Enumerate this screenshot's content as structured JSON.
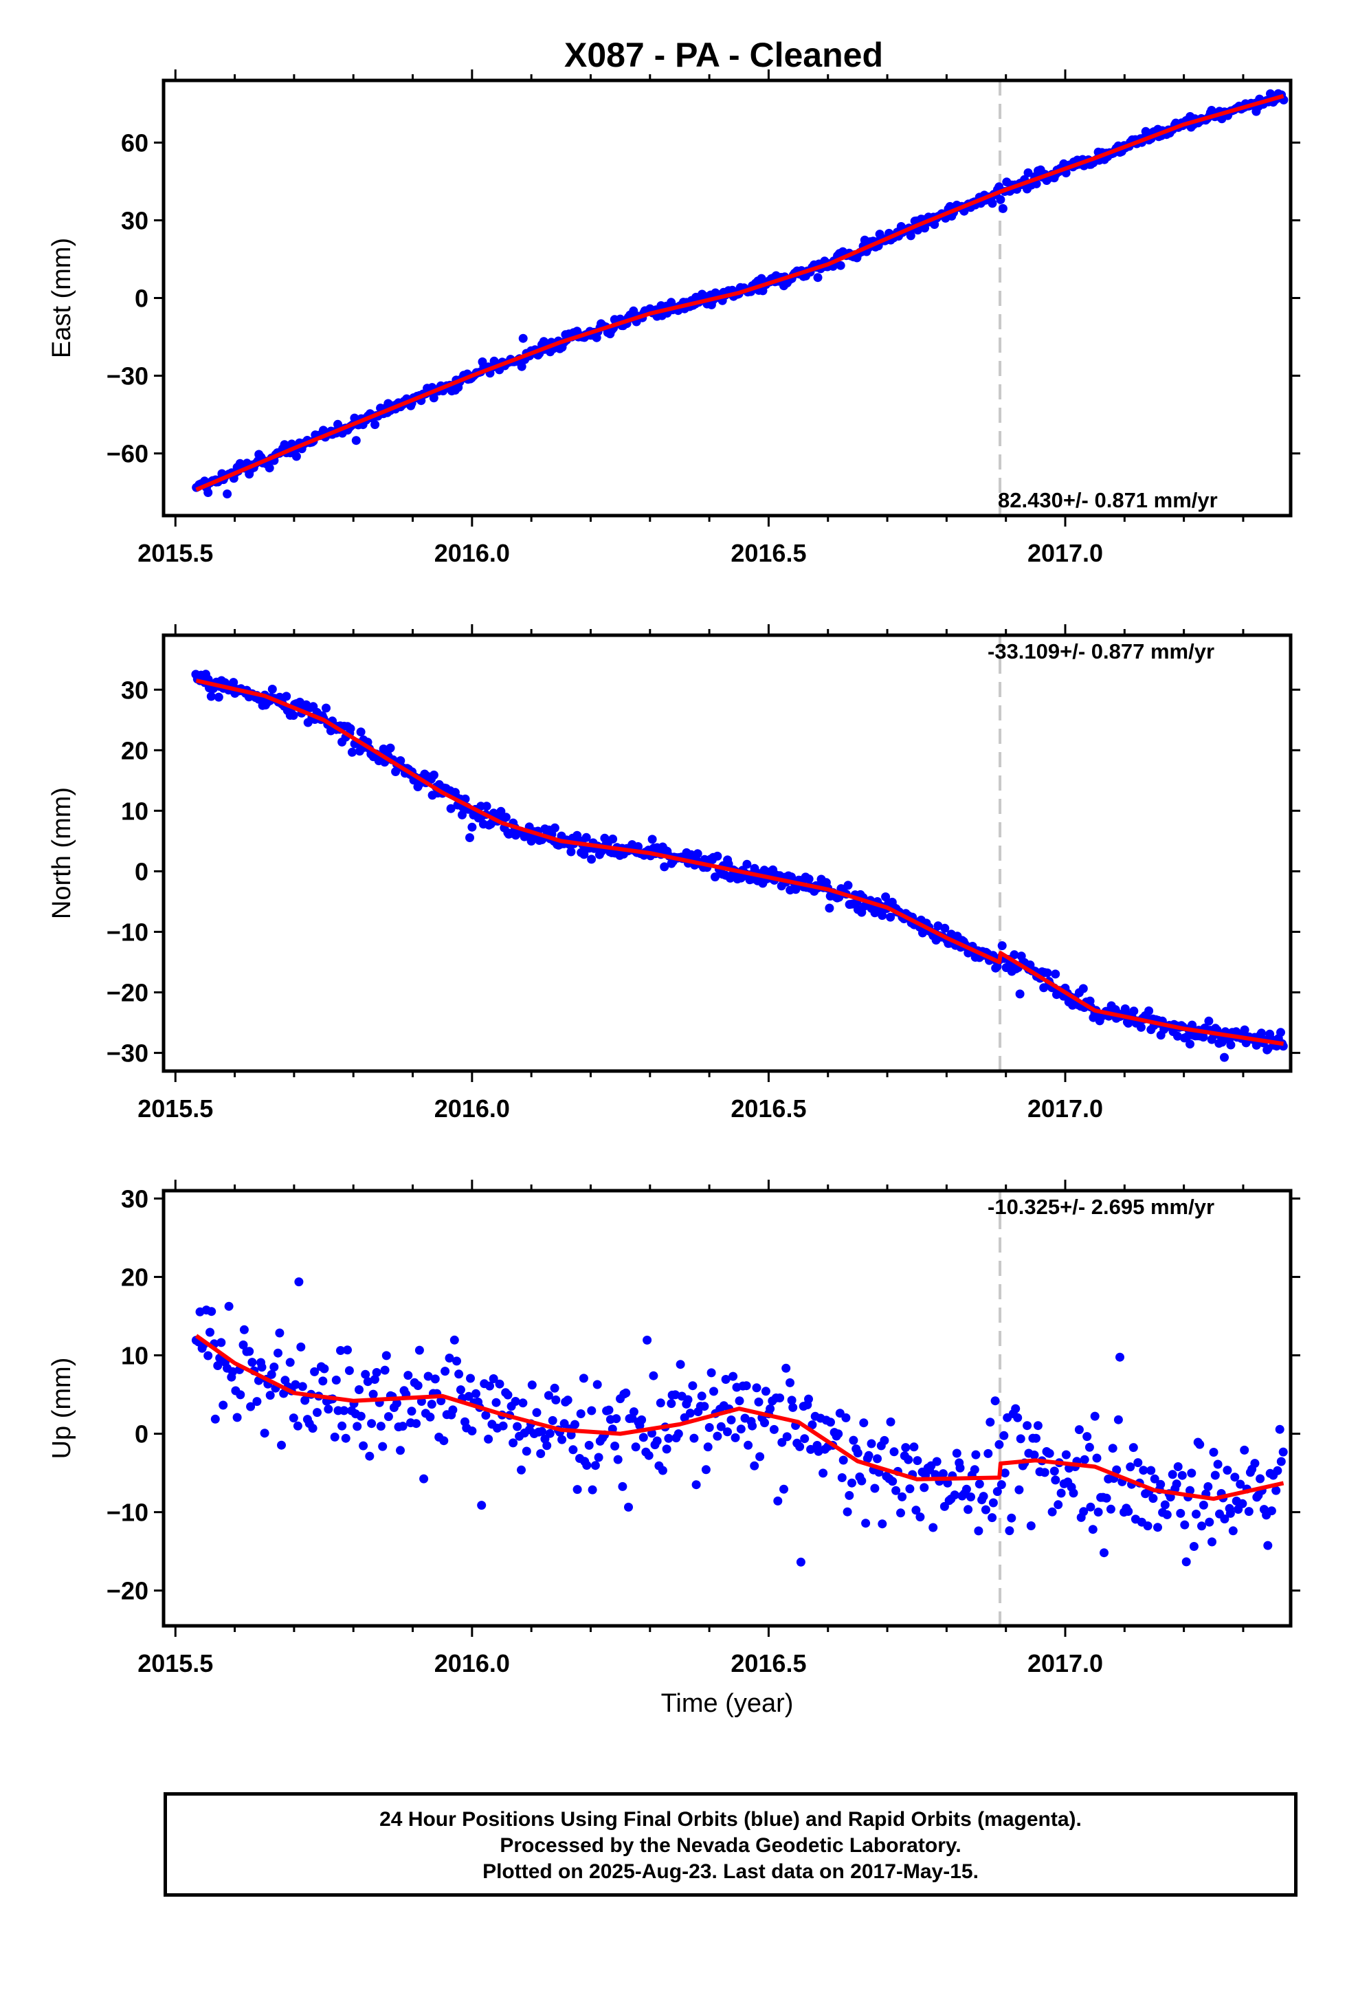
{
  "title": "X087  - PA - Cleaned",
  "xlabel": "Time (year)",
  "footer": {
    "line1": "24 Hour Positions Using Final Orbits (blue) and Rapid Orbits (magenta).",
    "line2": "Processed by the Nevada Geodetic Laboratory.",
    "line3": "Plotted on 2025-Aug-23. Last data on 2017-May-15."
  },
  "colors": {
    "points": "#0000ff",
    "fit": "#ff0000",
    "event_line": "#c8c8c8",
    "frame": "#000000"
  },
  "chart_data": [
    {
      "type": "scatter",
      "ylabel": "East (mm)",
      "rate_text": "82.430+/- 0.871 mm/yr",
      "xlim": [
        2015.48,
        2017.38
      ],
      "ylim": [
        -84,
        84
      ],
      "xticks": [
        "2015.5",
        "2016.0",
        "2016.5",
        "2017.0"
      ],
      "yticks": [
        -60,
        -30,
        0,
        30,
        60
      ],
      "event_line_x": 2016.89,
      "series": [
        {
          "kind": "observations",
          "start": 2015.535,
          "end": 2017.368,
          "count": 640,
          "noise": 1.8
        },
        {
          "kind": "fit",
          "x": [
            2015.535,
            2015.7,
            2015.85,
            2016.0,
            2016.15,
            2016.3,
            2016.45,
            2016.6,
            2016.75,
            2016.89,
            2017.05,
            2017.2,
            2017.368
          ],
          "y": [
            -74,
            -58,
            -44,
            -30,
            -17,
            -6,
            2,
            13,
            28,
            41,
            54,
            67,
            78
          ]
        }
      ]
    },
    {
      "type": "scatter",
      "ylabel": "North (mm)",
      "rate_text": "-33.109+/- 0.877 mm/yr",
      "xlim": [
        2015.48,
        2017.38
      ],
      "ylim": [
        -33,
        39
      ],
      "xticks": [
        "2015.5",
        "2016.0",
        "2016.5",
        "2017.0"
      ],
      "yticks": [
        -30,
        -20,
        -10,
        0,
        10,
        20,
        30
      ],
      "event_line_x": 2016.89,
      "series": [
        {
          "kind": "observations",
          "start": 2015.535,
          "end": 2017.368,
          "count": 640,
          "noise": 1.2
        },
        {
          "kind": "fit",
          "x": [
            2015.535,
            2015.65,
            2015.75,
            2015.85,
            2015.95,
            2016.05,
            2016.15,
            2016.3,
            2016.45,
            2016.6,
            2016.7,
            2016.8,
            2016.889,
            2016.891,
            2016.95,
            2017.05,
            2017.2,
            2017.368
          ],
          "y": [
            31.5,
            29,
            25,
            19,
            13,
            8,
            5,
            3,
            0,
            -3,
            -6,
            -11,
            -15,
            -13.5,
            -17,
            -23,
            -26,
            -28.5
          ]
        }
      ]
    },
    {
      "type": "scatter",
      "ylabel": "Up (mm)",
      "rate_text": "-10.325+/- 2.695 mm/yr",
      "xlim": [
        2015.48,
        2017.38
      ],
      "ylim": [
        -24.5,
        31
      ],
      "xticks": [
        "2015.5",
        "2016.0",
        "2016.5",
        "2017.0"
      ],
      "yticks": [
        -20,
        -10,
        0,
        10,
        20,
        30
      ],
      "event_line_x": 2016.89,
      "series": [
        {
          "kind": "observations",
          "start": 2015.535,
          "end": 2017.368,
          "count": 560,
          "noise": 4.8
        },
        {
          "kind": "fit",
          "x": [
            2015.535,
            2015.6,
            2015.7,
            2015.8,
            2015.95,
            2016.05,
            2016.15,
            2016.25,
            2016.35,
            2016.45,
            2016.55,
            2016.65,
            2016.75,
            2016.889,
            2016.891,
            2016.95,
            2017.05,
            2017.15,
            2017.25,
            2017.368
          ],
          "y": [
            12.5,
            9,
            5.2,
            4.2,
            4.8,
            2.5,
            0.5,
            0,
            1.2,
            3.2,
            1.5,
            -3.5,
            -5.8,
            -5.6,
            -3.8,
            -3.4,
            -4.2,
            -7.2,
            -8.3,
            -6.3
          ]
        }
      ]
    }
  ]
}
